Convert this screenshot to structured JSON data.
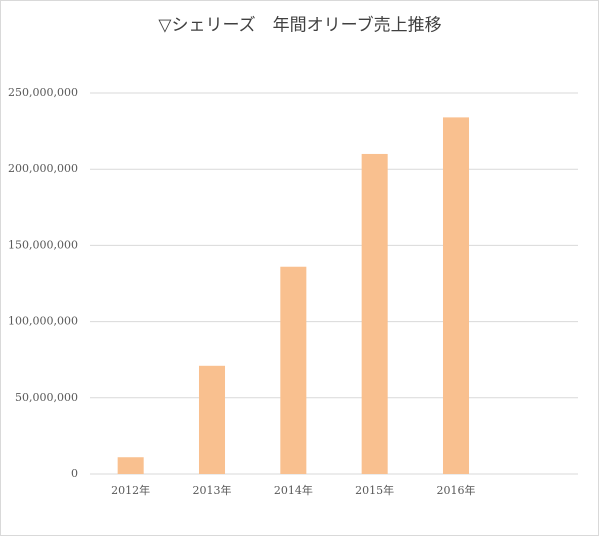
{
  "chart_data": {
    "type": "bar",
    "title": "▽シェリーズ　年間オリーブ売上推移",
    "categories": [
      "2012年",
      "2013年",
      "2014年",
      "2015年",
      "2016年",
      null
    ],
    "values": [
      11000000,
      71000000,
      136000000,
      210000000,
      234000000,
      null
    ],
    "color": "#f9c08f",
    "ylim": [
      0,
      250000000
    ],
    "yticks": [
      0,
      {
        "value": 50000000,
        "label": "50,000,000"
      },
      {
        "value": 100000000,
        "label": "100,000,000"
      },
      {
        "value": 150000000,
        "label": "150,000,000"
      },
      {
        "value": 200000000,
        "label": "200,000,000"
      },
      {
        "value": 250000000,
        "label": "250,000,000"
      }
    ],
    "grid": true
  }
}
